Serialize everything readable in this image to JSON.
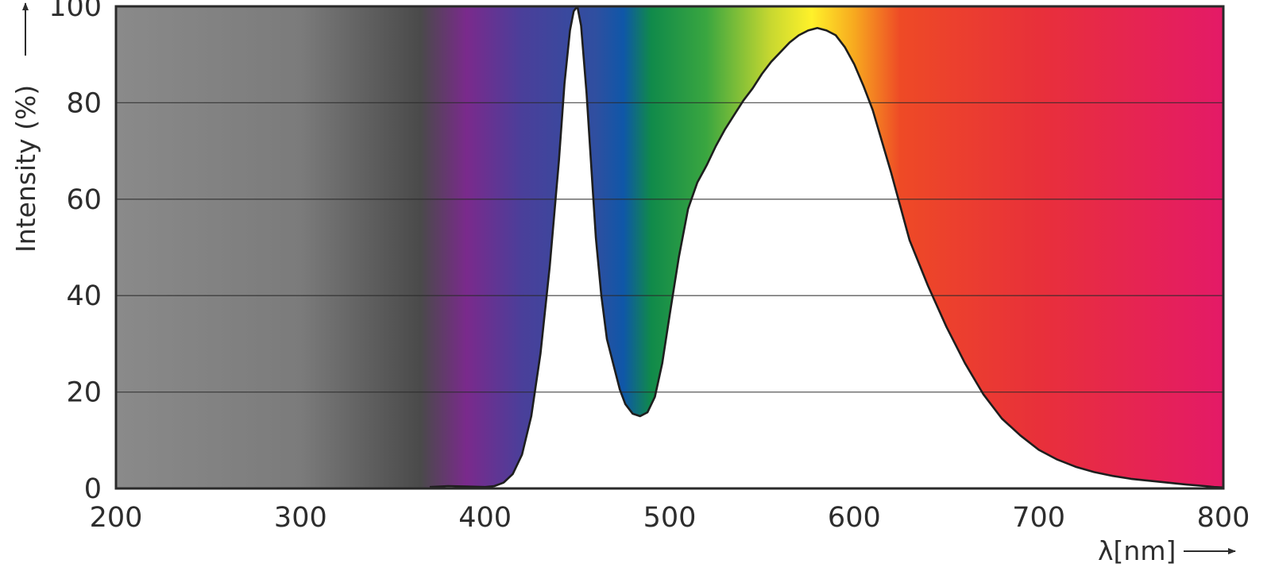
{
  "chart_data": {
    "type": "area",
    "title": "",
    "xlabel": "λ[nm]",
    "ylabel": "Intensity (%)",
    "xlim": [
      200,
      800
    ],
    "ylim": [
      0,
      100
    ],
    "x_ticks": [
      200,
      300,
      400,
      500,
      600,
      700,
      800
    ],
    "y_ticks": [
      0,
      20,
      40,
      60,
      80,
      100
    ],
    "grid": "horizontal",
    "legend": "none",
    "background": "visible light spectrum gradient: grey for ultraviolet below ~370 nm, then violet, blue, green, yellow, orange, red",
    "spectrum_colors": [
      {
        "nm": 200,
        "color": "#8a8a8a"
      },
      {
        "nm": 300,
        "color": "#7b7b7b"
      },
      {
        "nm": 365,
        "color": "#4a4a4a"
      },
      {
        "nm": 390,
        "color": "#7a2a8c"
      },
      {
        "nm": 420,
        "color": "#4a3f9a"
      },
      {
        "nm": 460,
        "color": "#2f4fa0"
      },
      {
        "nm": 475,
        "color": "#0f57a8"
      },
      {
        "nm": 490,
        "color": "#108a4a"
      },
      {
        "nm": 520,
        "color": "#3aa640"
      },
      {
        "nm": 555,
        "color": "#c8d830"
      },
      {
        "nm": 577,
        "color": "#fff12a"
      },
      {
        "nm": 600,
        "color": "#f7a91f"
      },
      {
        "nm": 625,
        "color": "#ee4a26"
      },
      {
        "nm": 700,
        "color": "#e8303a"
      },
      {
        "nm": 800,
        "color": "#e41a67"
      }
    ],
    "fill_color": "#ffffff",
    "line_color": "#1e1e1e",
    "series": [
      {
        "x": [
          370,
          380,
          390,
          400,
          405,
          410,
          415,
          420,
          425,
          430,
          435,
          440,
          443,
          446,
          448,
          450,
          452,
          455,
          458,
          460,
          463,
          466,
          470,
          473,
          476,
          480,
          484,
          488,
          492,
          496,
          500,
          505,
          510,
          515,
          520,
          525,
          530,
          535,
          540,
          545,
          550,
          555,
          560,
          565,
          570,
          575,
          580,
          585,
          590,
          595,
          600,
          605,
          610,
          615,
          620,
          625,
          630,
          640,
          650,
          660,
          670,
          680,
          690,
          700,
          710,
          720,
          730,
          740,
          750,
          760,
          770,
          780,
          790,
          795,
          800
        ],
        "y": [
          0.3,
          0.5,
          0.4,
          0.3,
          0.5,
          1.2,
          3,
          7,
          15,
          28,
          46,
          68,
          84,
          95,
          99,
          100,
          96,
          82,
          64,
          52,
          40,
          31,
          25,
          20.5,
          17.5,
          15.5,
          15,
          15.8,
          19,
          26,
          36,
          48,
          58,
          63.5,
          67,
          71,
          74.5,
          77.5,
          80.5,
          83,
          86,
          88.5,
          90.5,
          92.5,
          94,
          95,
          95.5,
          95,
          94,
          91.5,
          88,
          83.5,
          78.5,
          72,
          65.5,
          58.5,
          51.5,
          42,
          33.5,
          26,
          19.5,
          14.5,
          11,
          8,
          6,
          4.5,
          3.4,
          2.6,
          2,
          1.6,
          1.2,
          0.8,
          0.5,
          0.3,
          0.2
        ]
      }
    ]
  }
}
